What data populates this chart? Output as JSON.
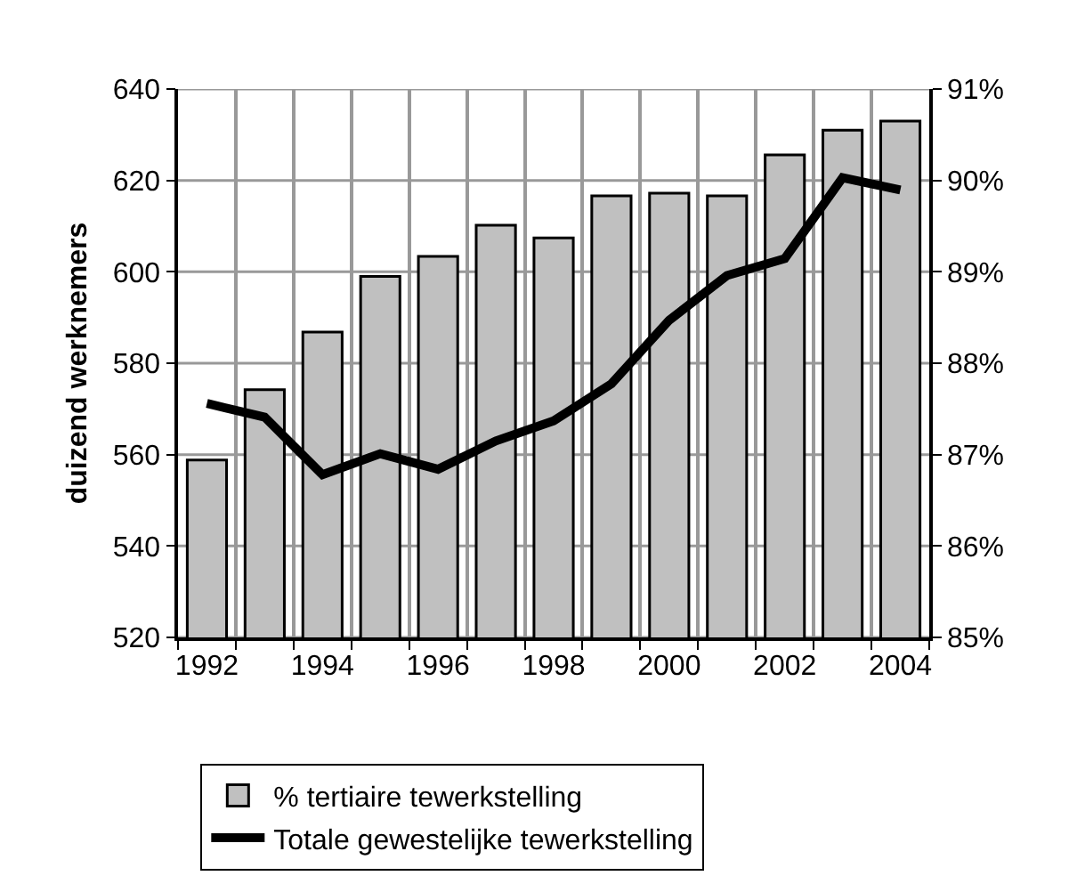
{
  "chart_data": {
    "type": "bar",
    "categories": [
      "1992",
      null,
      "1994",
      null,
      "1996",
      null,
      "1998",
      null,
      "2000",
      null,
      "2002",
      null,
      "2004"
    ],
    "ylabel": "duizend werknemers",
    "series": [
      {
        "name": "% tertiaire tewerkstelling",
        "axis": "y2",
        "color": "#c0c0c0",
        "values": [
          86.94,
          87.71,
          88.34,
          88.95,
          89.17,
          89.51,
          89.37,
          89.83,
          89.86,
          89.83,
          90.28,
          90.55,
          90.65
        ]
      },
      {
        "name": "Totale gewestelijke tewerkstelling",
        "type": "line",
        "color": "#000000",
        "values": [
          571.2,
          568.2,
          555.6,
          560.2,
          556.8,
          563,
          567.4,
          575.5,
          589.4,
          599.2,
          602.9,
          620.6,
          617.9
        ]
      }
    ],
    "ylim": [
      520,
      640
    ],
    "yticks": [
      520,
      540,
      560,
      580,
      600,
      620,
      640
    ],
    "y2lim": [
      85,
      91
    ],
    "y2ticks": [
      {
        "value": 85,
        "label": "85%"
      },
      {
        "value": 86,
        "label": "86%"
      },
      {
        "value": 87,
        "label": "87%"
      },
      {
        "value": 88,
        "label": "88%"
      },
      {
        "value": 89,
        "label": "89%"
      },
      {
        "value": 90,
        "label": "90%"
      },
      {
        "value": 91,
        "label": "91%"
      }
    ],
    "grid": true,
    "legend": "bottom"
  }
}
